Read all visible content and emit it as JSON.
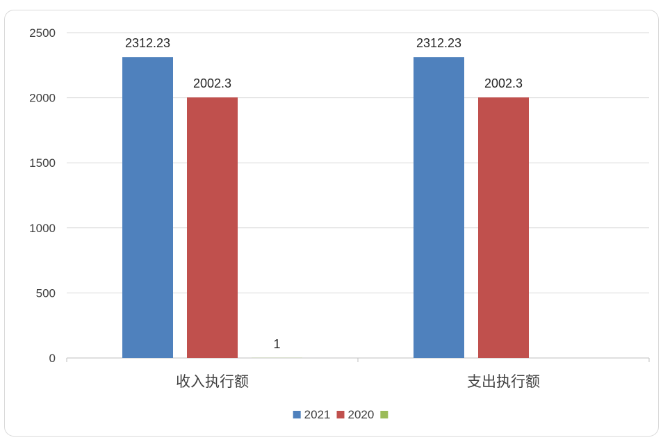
{
  "chart_data": {
    "type": "bar",
    "title": "",
    "xlabel": "",
    "ylabel": "",
    "categories": [
      "收入执行额",
      "支出执行额"
    ],
    "series": [
      {
        "name": "2021",
        "color": "#4f81bd",
        "values": [
          2312.23,
          2312.23
        ],
        "labels": [
          "2312.23",
          "2312.23"
        ]
      },
      {
        "name": "2020",
        "color": "#c0504d",
        "values": [
          2002.3,
          2002.3
        ],
        "labels": [
          "2002.3",
          "2002.3"
        ]
      },
      {
        "name": "",
        "color": "#9bbb59",
        "values": [
          1,
          null
        ],
        "labels": [
          "1",
          ""
        ]
      }
    ],
    "ylim": [
      0,
      2500
    ],
    "yticks": [
      0,
      500,
      1000,
      1500,
      2000,
      2500
    ],
    "ytick_labels": [
      "0",
      "500",
      "1000",
      "1500",
      "2000",
      "2500"
    ],
    "grid": true,
    "legend_position": "bottom"
  }
}
